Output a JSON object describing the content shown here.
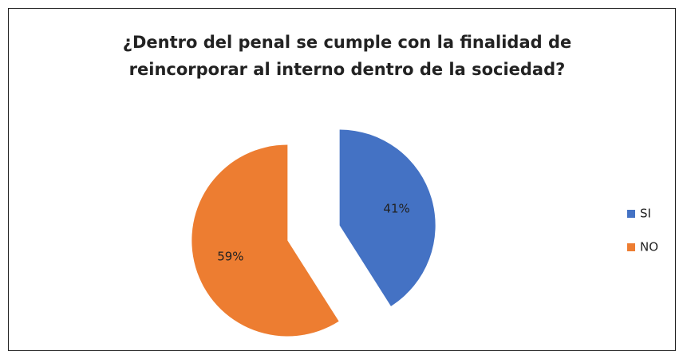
{
  "chart_data": {
    "type": "pie",
    "title": "¿Dentro del penal se cumple con la finalidad de reincorporar al interno dentro de la sociedad?",
    "categories": [
      "SI",
      "NO"
    ],
    "values": [
      41,
      59
    ],
    "value_labels": [
      "41%",
      "59%"
    ],
    "colors": [
      "#4472c4",
      "#ed7d31"
    ],
    "legend": "right"
  }
}
